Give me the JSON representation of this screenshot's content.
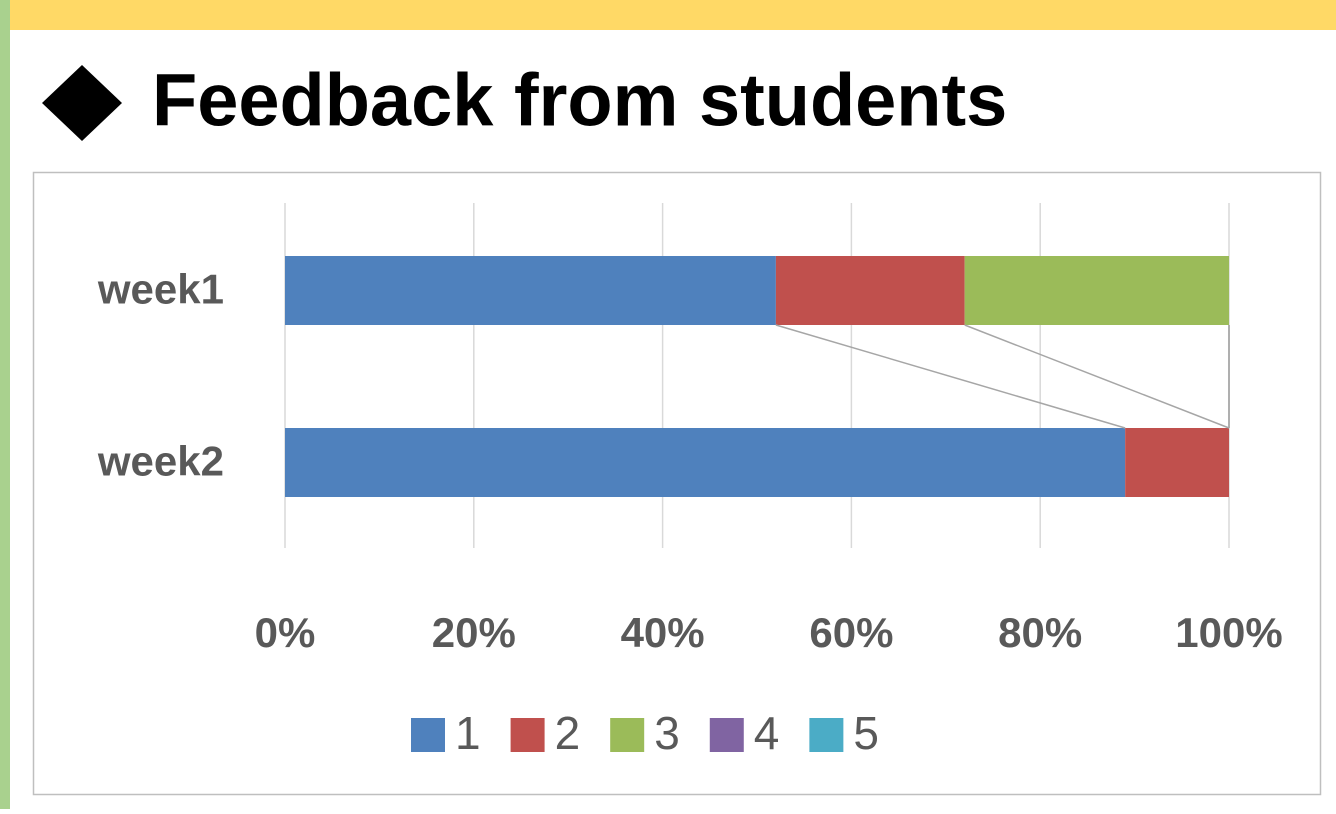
{
  "chart_data": {
    "type": "stacked-bar-horizontal",
    "title": "Feedback from students",
    "categories": [
      "week1",
      "week2"
    ],
    "series": [
      {
        "name": "1",
        "color": "#4f81bd",
        "values": [
          52,
          89
        ]
      },
      {
        "name": "2",
        "color": "#c0504d",
        "values": [
          20,
          11
        ]
      },
      {
        "name": "3",
        "color": "#9bbb59",
        "values": [
          28,
          0
        ]
      },
      {
        "name": "4",
        "color": "#8064a2",
        "values": [
          0,
          0
        ]
      },
      {
        "name": "5",
        "color": "#4bacc6",
        "values": [
          0,
          0
        ]
      }
    ],
    "xlim": [
      0,
      100
    ],
    "xticks": [
      {
        "value": 0,
        "label": "0%"
      },
      {
        "value": 20,
        "label": "20%"
      },
      {
        "value": 40,
        "label": "40%"
      },
      {
        "value": 60,
        "label": "60%"
      },
      {
        "value": 80,
        "label": "80%"
      },
      {
        "value": 100,
        "label": "100%"
      }
    ],
    "grid": true,
    "legend": "bottom"
  }
}
